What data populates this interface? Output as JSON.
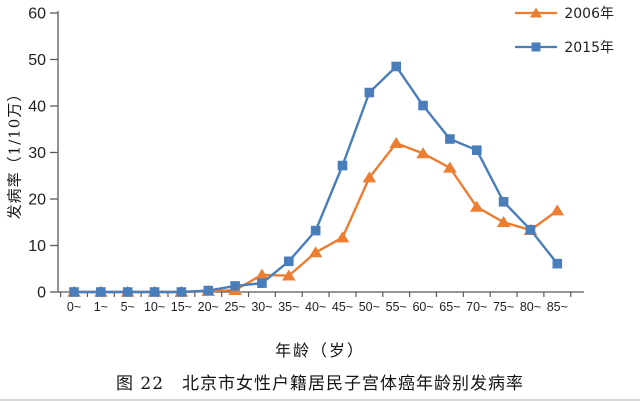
{
  "figure": {
    "caption": "图 22　北京市女性户籍居民子宫体癌年龄别发病率"
  },
  "chart_data": {
    "type": "line",
    "title": "",
    "xlabel": "年龄（岁）",
    "ylabel": "发病率（1/10万）",
    "ylim": [
      0,
      60
    ],
    "ytick_step": 10,
    "grid": false,
    "legend_position": "top-right",
    "axis_color": "#595959",
    "text_color": "#1f1f1f",
    "categories": [
      "0~",
      "1~",
      "5~",
      "10~",
      "15~",
      "20~",
      "25~",
      "30~",
      "35~",
      "40~",
      "45~",
      "50~",
      "55~",
      "60~",
      "65~",
      "70~",
      "75~",
      "80~",
      "85~"
    ],
    "series": [
      {
        "name": "2006年",
        "color": "#ED7D31",
        "marker": "triangle",
        "values": [
          0,
          0,
          0,
          0,
          0,
          0.2,
          0.4,
          3.7,
          3.5,
          8.5,
          11.7,
          24.6,
          32.0,
          29.8,
          26.7,
          18.3,
          15.0,
          13.3,
          17.5
        ]
      },
      {
        "name": "2015年",
        "color": "#4A7EBB",
        "marker": "square",
        "values": [
          0,
          0,
          0,
          0,
          0,
          0.3,
          1.3,
          1.9,
          6.6,
          13.2,
          27.2,
          42.9,
          48.5,
          40.1,
          32.9,
          30.5,
          19.4,
          13.4,
          6.1
        ]
      }
    ]
  }
}
